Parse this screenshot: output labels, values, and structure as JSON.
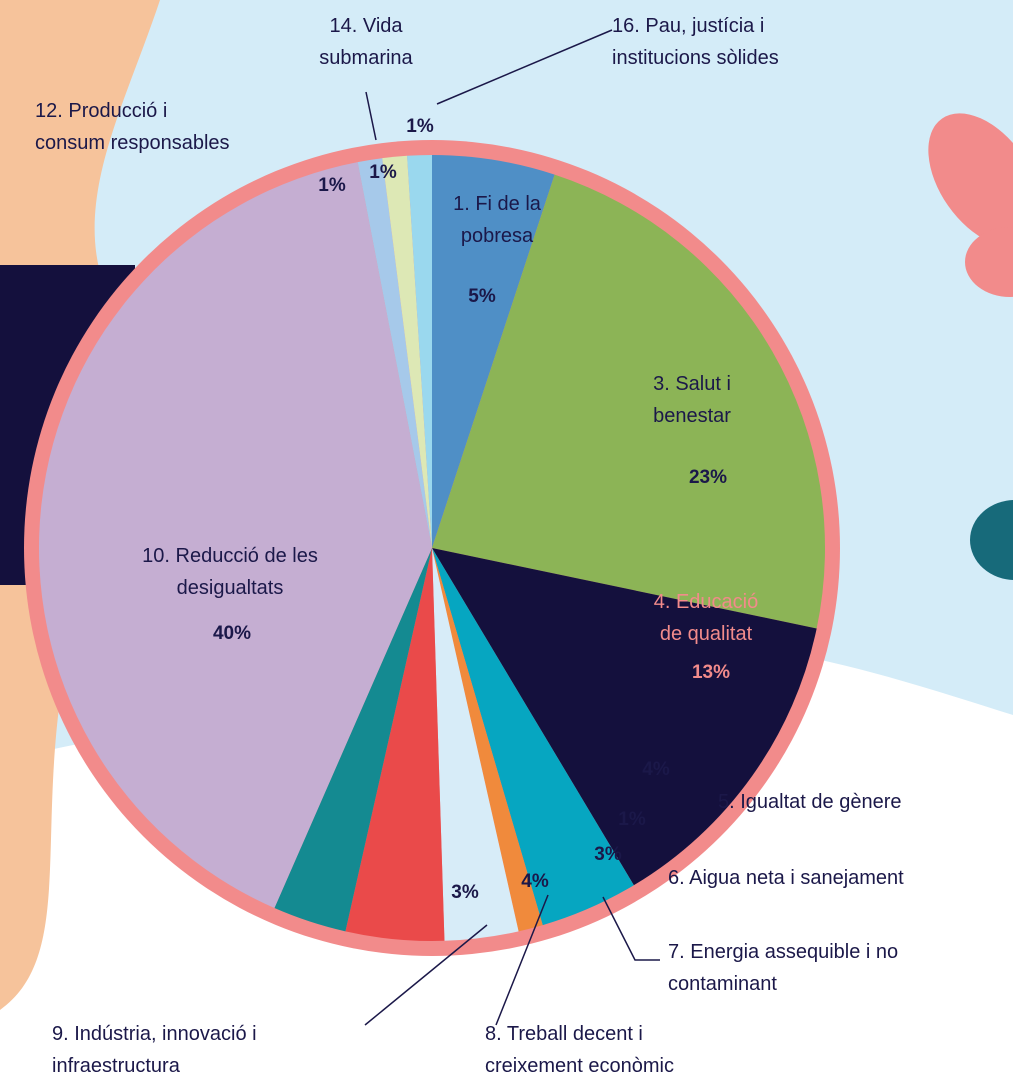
{
  "chart_data": {
    "type": "pie",
    "categories": [
      "1. Fi de la pobresa",
      "3. Salut i benestar",
      "4. Educació de qualitat",
      "5. Igualtat de gènere",
      "6. Aigua neta i sanejament",
      "7. Energia assequible i no contaminant",
      "8. Treball decent i creixement econòmic",
      "9. Indústria, innovació i infraestructura",
      "10. Reducció de les desigualtats",
      "12. Producció i consum responsables",
      "14. Vida submarina",
      "16. Pau, justícia i institucions sòlides"
    ],
    "values": [
      5,
      23,
      13,
      4,
      1,
      3,
      4,
      3,
      40,
      1,
      1,
      1
    ],
    "value_labels": [
      "5%",
      "23%",
      "13%",
      "4%",
      "1%",
      "3%",
      "4%",
      "3%",
      "40%",
      "1%",
      "1%",
      "1%"
    ],
    "colors": [
      "#4f8fc6",
      "#8cb456",
      "#14103d",
      "#06a6c1",
      "#f08a3c",
      "#d7ecf8",
      "#ea4a4a",
      "#148a91",
      "#c5aed2",
      "#a6c9ea",
      "#dde8b5",
      "#9ad8ee"
    ]
  }
}
